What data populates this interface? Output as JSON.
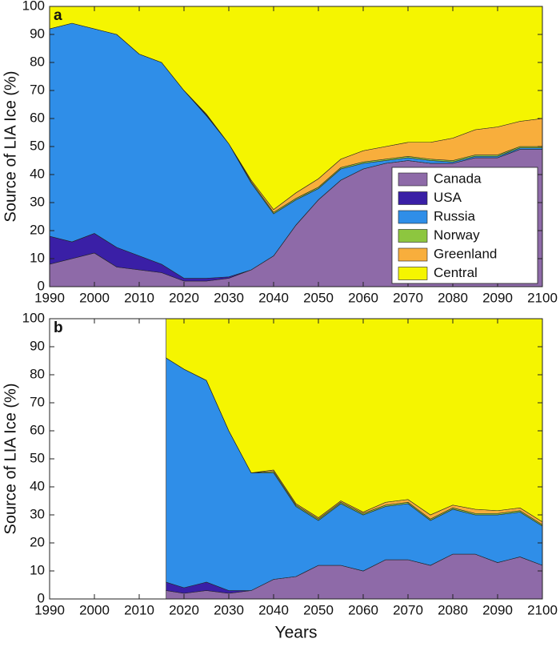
{
  "chart_data": [
    {
      "type": "area",
      "panel_label": "a",
      "ylabel": "Source of LIA Ice (%)",
      "x": [
        1990,
        1995,
        2000,
        2005,
        2010,
        2015,
        2020,
        2025,
        2030,
        2035,
        2040,
        2045,
        2050,
        2055,
        2060,
        2065,
        2070,
        2075,
        2080,
        2085,
        2090,
        2095,
        2100
      ],
      "series": [
        {
          "name": "Canada",
          "color": "#8e6aa8",
          "values": [
            8,
            10,
            12,
            7,
            6,
            5,
            2,
            2,
            3,
            6,
            11,
            22,
            31,
            38,
            42,
            44,
            45,
            44,
            44,
            46,
            46,
            49,
            49
          ]
        },
        {
          "name": "USA",
          "color": "#3a1fa6",
          "values": [
            10,
            6,
            7,
            7,
            5,
            3,
            1,
            1,
            0.5,
            0,
            0,
            0,
            0,
            0,
            0,
            0,
            0,
            0,
            0,
            0,
            0,
            0,
            0
          ]
        },
        {
          "name": "Russia",
          "color": "#2f8ee8",
          "values": [
            74,
            78,
            73,
            76,
            72,
            72,
            67,
            58,
            47.5,
            31,
            15,
            9,
            4,
            4,
            2,
            1,
            1,
            1,
            0.5,
            0.5,
            0.5,
            0.5,
            0.5
          ]
        },
        {
          "name": "Norway",
          "color": "#8dc63f",
          "values": [
            0,
            0,
            0,
            0,
            0,
            0,
            0,
            0.3,
            0,
            0.5,
            0.5,
            0.5,
            0.5,
            0.5,
            0.5,
            0.5,
            0.5,
            0.5,
            0.5,
            0.5,
            0.5,
            0.5,
            0.5
          ]
        },
        {
          "name": "Greenland",
          "color": "#f8ae3c",
          "values": [
            0,
            0,
            0,
            0,
            0,
            0,
            0,
            0.3,
            0,
            0.5,
            1,
            2,
            3,
            3,
            4,
            4.5,
            5,
            6,
            8,
            9,
            10,
            9,
            10
          ]
        },
        {
          "name": "Central",
          "color": "#f5f500",
          "values": [
            8,
            6,
            8,
            10,
            17,
            20,
            30,
            38.4,
            49,
            62,
            72.5,
            66.5,
            61.5,
            54.5,
            51.5,
            50,
            48.5,
            48.5,
            47,
            44,
            43,
            41,
            40
          ]
        }
      ],
      "xlim": [
        1990,
        2100
      ],
      "ylim": [
        0,
        100
      ],
      "xticks": [
        1990,
        2000,
        2010,
        2020,
        2030,
        2040,
        2050,
        2060,
        2070,
        2080,
        2090,
        2100
      ],
      "yticks": [
        0,
        10,
        20,
        30,
        40,
        50,
        60,
        70,
        80,
        90,
        100
      ],
      "legend": "lower right"
    },
    {
      "type": "area",
      "panel_label": "b",
      "ylabel": "Source of LIA Ice (%)",
      "xlabel": "Years",
      "x": [
        2016,
        2020,
        2025,
        2030,
        2035,
        2040,
        2045,
        2050,
        2055,
        2060,
        2065,
        2070,
        2075,
        2080,
        2085,
        2090,
        2095,
        2100
      ],
      "series": [
        {
          "name": "Canada",
          "color": "#8e6aa8",
          "values": [
            3,
            2,
            3,
            2,
            3,
            7,
            8,
            12,
            12,
            10,
            14,
            14,
            12,
            16,
            16,
            13,
            15,
            12
          ]
        },
        {
          "name": "USA",
          "color": "#3a1fa6",
          "values": [
            3,
            2,
            3,
            1,
            0,
            0,
            0,
            0,
            0,
            0,
            0,
            0,
            0,
            0,
            0,
            0,
            0,
            0
          ]
        },
        {
          "name": "Russia",
          "color": "#2f8ee8",
          "values": [
            80,
            78,
            72,
            57,
            42,
            38,
            25,
            16,
            22,
            20,
            19,
            20,
            16,
            16,
            14,
            17,
            16,
            14
          ]
        },
        {
          "name": "Norway",
          "color": "#8dc63f",
          "values": [
            0,
            0,
            0,
            0,
            0,
            0.5,
            0.5,
            0.5,
            0.5,
            0.5,
            0.5,
            0.5,
            0.5,
            0.5,
            0.5,
            0.5,
            0.5,
            0.5
          ]
        },
        {
          "name": "Greenland",
          "color": "#f8ae3c",
          "values": [
            0,
            0,
            0,
            0,
            0,
            0.5,
            0.5,
            0.5,
            0.5,
            0.5,
            1,
            1,
            1.5,
            1,
            1.5,
            1,
            1,
            1
          ]
        },
        {
          "name": "Central",
          "color": "#f5f500",
          "values": [
            14,
            18,
            22,
            40,
            55,
            54,
            66,
            71,
            65,
            69,
            65.5,
            64.5,
            70,
            66.5,
            68,
            68.5,
            67.5,
            72.5
          ]
        }
      ],
      "xlim": [
        1990,
        2100
      ],
      "ylim": [
        0,
        100
      ],
      "xticks": [
        1990,
        2000,
        2010,
        2020,
        2030,
        2040,
        2050,
        2060,
        2070,
        2080,
        2090,
        2100
      ],
      "yticks": [
        0,
        10,
        20,
        30,
        40,
        50,
        60,
        70,
        80,
        90,
        100
      ]
    }
  ]
}
